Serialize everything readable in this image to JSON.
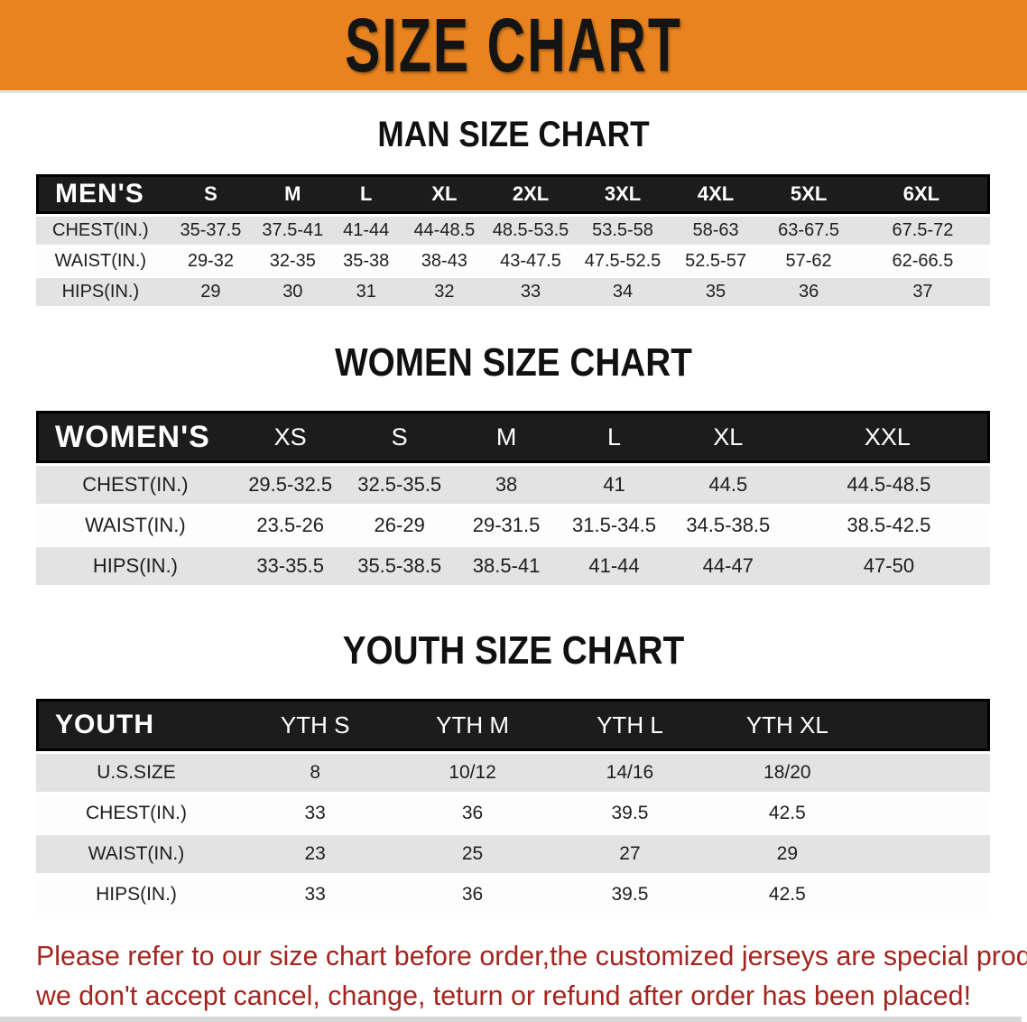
{
  "banner": {
    "title": "SIZE CHART"
  },
  "colors": {
    "banner_bg": "#E8831F",
    "header_bg": "#1C1C1C",
    "row_alt": "#E3E3E3",
    "row_main": "#FDFDFD",
    "heading": "#111111",
    "disclaimer": "#A3251F"
  },
  "sections": {
    "men": {
      "heading": "MAN SIZE CHART",
      "table": {
        "label": "MEN'S",
        "columns": [
          "S",
          "M",
          "L",
          "XL",
          "2XL",
          "3XL",
          "4XL",
          "5XL",
          "6XL"
        ],
        "rows": [
          {
            "label": "CHEST(IN.)",
            "values": [
              "35-37.5",
              "37.5-41",
              "41-44",
              "44-48.5",
              "48.5-53.5",
              "53.5-58",
              "58-63",
              "63-67.5",
              "67.5-72"
            ]
          },
          {
            "label": "WAIST(IN.)",
            "values": [
              "29-32",
              "32-35",
              "35-38",
              "38-43",
              "43-47.5",
              "47.5-52.5",
              "52.5-57",
              "57-62",
              "62-66.5"
            ]
          },
          {
            "label": "HIPS(IN.)",
            "values": [
              "29",
              "30",
              "31",
              "32",
              "33",
              "34",
              "35",
              "36",
              "37"
            ]
          }
        ]
      }
    },
    "women": {
      "heading": "WOMEN SIZE CHART",
      "table": {
        "label": "WOMEN'S",
        "columns": [
          "XS",
          "S",
          "M",
          "L",
          "XL",
          "XXL"
        ],
        "rows": [
          {
            "label": "CHEST(IN.)",
            "values": [
              "29.5-32.5",
              "32.5-35.5",
              "38",
              "41",
              "44.5",
              "44.5-48.5"
            ]
          },
          {
            "label": "WAIST(IN.)",
            "values": [
              "23.5-26",
              "26-29",
              "29-31.5",
              "31.5-34.5",
              "34.5-38.5",
              "38.5-42.5"
            ]
          },
          {
            "label": "HIPS(IN.)",
            "values": [
              "33-35.5",
              "35.5-38.5",
              "38.5-41",
              "41-44",
              "44-47",
              "47-50"
            ]
          }
        ]
      }
    },
    "youth": {
      "heading": "YOUTH SIZE CHART",
      "table": {
        "label": "YOUTH",
        "columns": [
          "YTH S",
          "YTH M",
          "YTH L",
          "YTH XL"
        ],
        "rows": [
          {
            "label": "U.S.SIZE",
            "values": [
              "8",
              "10/12",
              "14/16",
              "18/20"
            ]
          },
          {
            "label": "CHEST(IN.)",
            "values": [
              "33",
              "36",
              "39.5",
              "42.5"
            ]
          },
          {
            "label": "WAIST(IN.)",
            "values": [
              "23",
              "25",
              "27",
              "29"
            ]
          },
          {
            "label": "HIPS(IN.)",
            "values": [
              "33",
              "36",
              "39.5",
              "42.5"
            ]
          }
        ]
      }
    }
  },
  "disclaimer": {
    "line1": "Please refer to our size chart before order,the customized jerseys are special products,",
    "line2": "we don't accept cancel, change, teturn or refund after order has been placed!"
  }
}
